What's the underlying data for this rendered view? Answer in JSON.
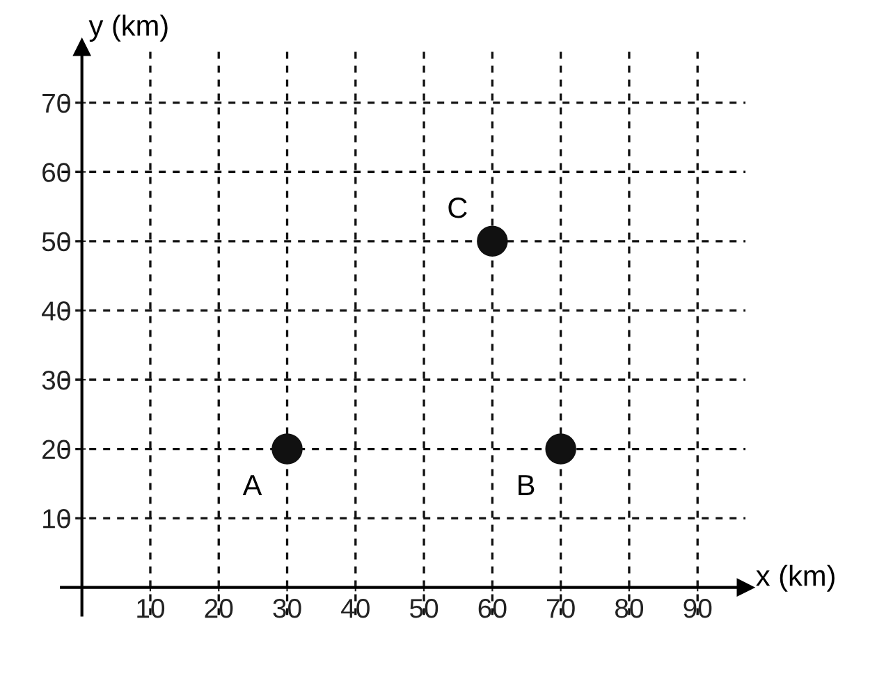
{
  "chart_data": {
    "type": "scatter",
    "xlabel": "x (km)",
    "ylabel": "y (km)",
    "x": [
      30,
      70,
      60
    ],
    "values": [
      20,
      20,
      50
    ],
    "color": "#111111",
    "marker": "circle",
    "xlim": [
      -3,
      97
    ],
    "ylim": [
      -4,
      78
    ],
    "xticks": [
      10,
      20,
      30,
      40,
      50,
      60,
      70,
      80,
      90
    ],
    "yticks": [
      10,
      20,
      30,
      40,
      50,
      60,
      70
    ],
    "grid": true,
    "annotations": [
      {
        "text": "A",
        "x": 30,
        "y": 20
      },
      {
        "text": "B",
        "x": 70,
        "y": 20
      },
      {
        "text": "C",
        "x": 60,
        "y": 50
      }
    ]
  }
}
